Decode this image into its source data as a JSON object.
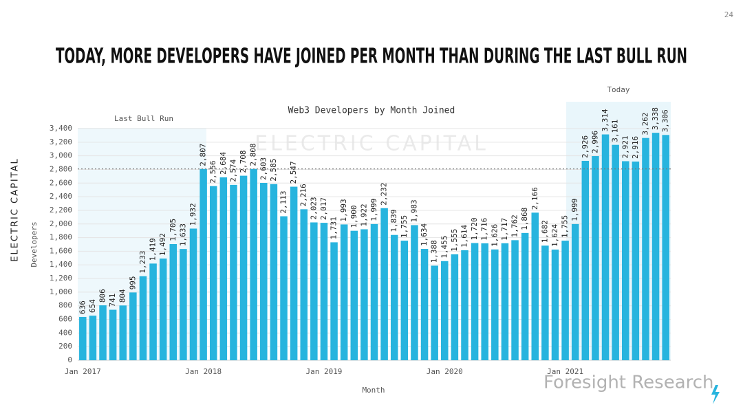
{
  "page_number": "24",
  "headline": "TODAY, MORE DEVELOPERS HAVE JOINED PER MONTH THAN DURING THE LAST BULL RUN",
  "branding": {
    "logo": "ELECTRIC CAPITAL",
    "watermark": "ELECTRIC CAPITAL",
    "source_watermark": "Foresight Research"
  },
  "chart_data": {
    "type": "bar",
    "title": "Web3 Developers by Month Joined",
    "xlabel": "Month",
    "ylabel": "Developers",
    "annotations": [
      "Last Bull Run",
      "Today"
    ],
    "categories": [
      "Jan 2017",
      null,
      null,
      null,
      null,
      null,
      null,
      null,
      null,
      null,
      null,
      null,
      "Jan 2018",
      null,
      null,
      null,
      null,
      null,
      null,
      null,
      null,
      null,
      null,
      null,
      "Jan 2019",
      null,
      null,
      null,
      null,
      null,
      null,
      null,
      null,
      null,
      null,
      null,
      "Jan 2020",
      null,
      null,
      null,
      null,
      null,
      null,
      null,
      null,
      null,
      null,
      null,
      "Jan 2021",
      null,
      null,
      null,
      null,
      null,
      null,
      null,
      null,
      null,
      null
    ],
    "values": [
      636,
      654,
      806,
      741,
      804,
      995,
      1233,
      1419,
      1492,
      1705,
      1633,
      1932,
      2807,
      2556,
      2684,
      2574,
      2708,
      2808,
      2603,
      2585,
      2113,
      2547,
      2216,
      2023,
      2017,
      1731,
      1993,
      1900,
      1922,
      1999,
      2232,
      1839,
      1755,
      1983,
      1634,
      1388,
      1455,
      1555,
      1614,
      1720,
      1716,
      1626,
      1717,
      1762,
      1868,
      2166,
      1682,
      1624,
      1755,
      1999,
      2926,
      2996,
      3314,
      3161,
      2921,
      2916,
      3262,
      3338,
      3306
    ],
    "value_labels": [
      "636",
      "654",
      "806",
      "741",
      "804",
      "995",
      "1,233",
      "1,419",
      "1,492",
      "1,705",
      "1,633",
      "1,932",
      "2,807",
      "2,556",
      "2,684",
      "2,574",
      "2,708",
      "2,808",
      "2,603",
      "2,585",
      "2,113",
      "2,547",
      "2,216",
      "2,023",
      "2,017",
      "1,731",
      "1,993",
      "1,900",
      "1,922",
      "1,999",
      "2,232",
      "1,839",
      "1,755",
      "1,983",
      "1,634",
      "1,388",
      "1,455",
      "1,555",
      "1,614",
      "1,720",
      "1,716",
      "1,626",
      "1,717",
      "1,762",
      "1,868",
      "2,166",
      "1,682",
      "1,624",
      "1,755",
      "1,999",
      "2,926",
      "2,996",
      "3,314",
      "3,161",
      "2,921",
      "2,916",
      "3,262",
      "3,338",
      "3,306"
    ],
    "color": "#27b4de",
    "reference_line": 2808,
    "ylim": [
      0,
      3400
    ],
    "yticks": [
      0,
      200,
      400,
      600,
      800,
      {
        "value": 1000,
        "label": "1,000"
      },
      {
        "value": 1200,
        "label": "1,200"
      },
      {
        "value": 1400,
        "label": "1,400"
      },
      {
        "value": 1600,
        "label": "1,600"
      },
      {
        "value": 1800,
        "label": "1,800"
      },
      {
        "value": 2000,
        "label": "2,000"
      },
      {
        "value": 2200,
        "label": "2,200"
      },
      {
        "value": 2400,
        "label": "2,400"
      },
      {
        "value": 2600,
        "label": "2,600"
      },
      {
        "value": 2800,
        "label": "2,800"
      },
      {
        "value": 3000,
        "label": "3,000"
      },
      {
        "value": 3200,
        "label": "3,200"
      },
      {
        "value": 3400,
        "label": "3,400"
      }
    ],
    "grid": true
  }
}
